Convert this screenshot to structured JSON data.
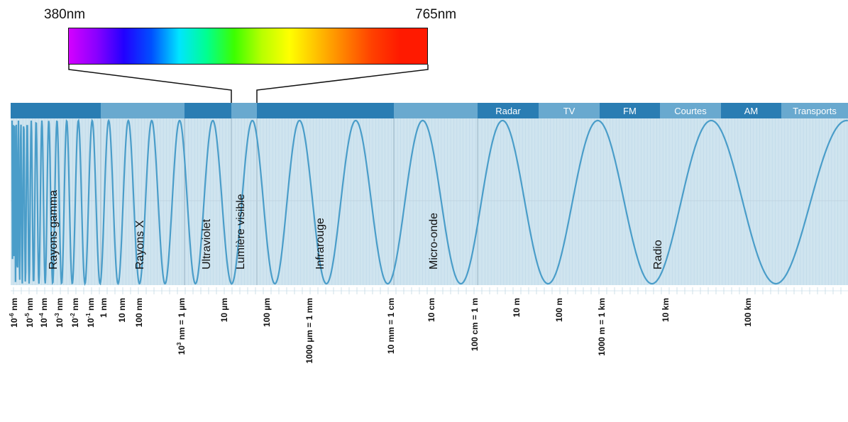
{
  "visible_spectrum": {
    "min_label": "380nm",
    "max_label": "765nm",
    "colors": [
      "#d400ff",
      "#8a00ff",
      "#2200ff",
      "#0050ff",
      "#00e5ff",
      "#00ff90",
      "#3cff00",
      "#b8ff00",
      "#ffff00",
      "#ffc000",
      "#ff8000",
      "#ff4000",
      "#ff1a00",
      "#ff1a00"
    ]
  },
  "bands": {
    "labels": [
      "Radar",
      "TV",
      "FM",
      "Courtes",
      "AM",
      "Transports"
    ]
  },
  "regions": {
    "labels": [
      "Rayons gamma",
      "Rayons X",
      "Ultraviolet",
      "Lumière visible",
      "Infrarouge",
      "Micro-onde",
      "Radio"
    ]
  },
  "scale": {
    "ticks": [
      {
        "text": "10",
        "sup": "-6",
        "unit": "nm"
      },
      {
        "text": "10",
        "sup": "-5",
        "unit": "nm"
      },
      {
        "text": "10",
        "sup": "-4",
        "unit": "nm"
      },
      {
        "text": "10",
        "sup": "-3",
        "unit": "nm"
      },
      {
        "text": "10",
        "sup": "-2",
        "unit": "nm"
      },
      {
        "text": "10",
        "sup": "-1",
        "unit": "nm"
      },
      {
        "text": "1 nm"
      },
      {
        "text": "10 nm"
      },
      {
        "text": "100 nm"
      },
      {
        "text": "10",
        "sup": "3",
        "unit": "nm = 1 µm"
      },
      {
        "text": "10 µm"
      },
      {
        "text": "100 µm"
      },
      {
        "text": "1000 µm = 1 mm"
      },
      {
        "text": "10 mm = 1 cm"
      },
      {
        "text": "10 cm"
      },
      {
        "text": "100 cm = 1 m"
      },
      {
        "text": "10 m"
      },
      {
        "text": "100 m"
      },
      {
        "text": "1000 m = 1 km"
      },
      {
        "text": "10 km"
      },
      {
        "text": "100 km"
      }
    ]
  },
  "colors": {
    "panel": "#cfe4ef",
    "wave": "#4a9dc9",
    "band_dark": "#2a7db3",
    "band_light": "#69a9cf",
    "band_text": "#ffffff"
  }
}
